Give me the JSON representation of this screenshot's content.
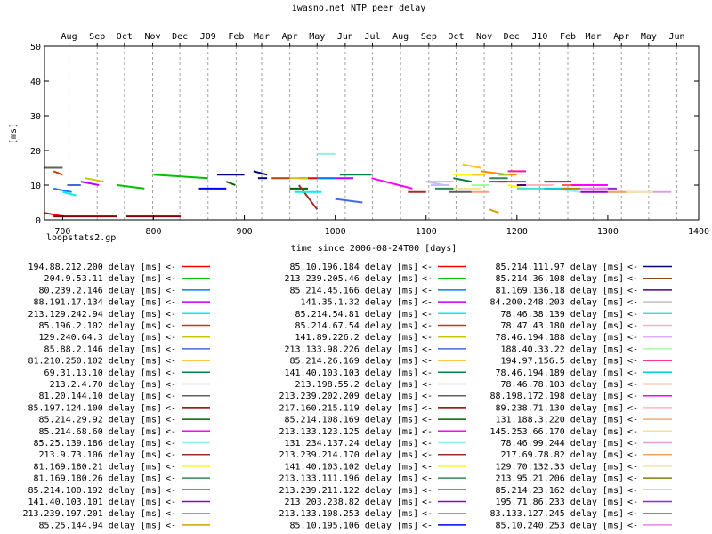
{
  "chart_data": {
    "type": "line",
    "title": "iwasno.net NTP peer delay",
    "xlabel": "time since 2006-08-24T00 [days]",
    "ylabel": "[ms]",
    "footer": "loopstats2.gp",
    "xlim": [
      680,
      1400
    ],
    "ylim": [
      0,
      50
    ],
    "grid": "vertical dashed at month starts",
    "legend_position": "below plot, 3 columns",
    "x_ticks": [
      {
        "value": 700,
        "label": "700"
      },
      {
        "value": 800,
        "label": "800"
      },
      {
        "value": 900,
        "label": "900"
      },
      {
        "value": 1000,
        "label": "1000"
      },
      {
        "value": 1100,
        "label": "1100"
      },
      {
        "value": 1200,
        "label": "1200"
      },
      {
        "value": 1300,
        "label": "1300"
      },
      {
        "value": 1400,
        "label": "1400"
      }
    ],
    "y_ticks": [
      {
        "value": 0,
        "label": "0"
      },
      {
        "value": 10,
        "label": "10"
      },
      {
        "value": 20,
        "label": "20"
      },
      {
        "value": 30,
        "label": "30"
      },
      {
        "value": 40,
        "label": "40"
      },
      {
        "value": 50,
        "label": "50"
      }
    ],
    "month_ticks": [
      {
        "value": 707,
        "label": "Aug"
      },
      {
        "value": 738,
        "label": "Sep"
      },
      {
        "value": 768,
        "label": "Oct"
      },
      {
        "value": 799,
        "label": "Nov"
      },
      {
        "value": 829,
        "label": "Dec"
      },
      {
        "value": 860,
        "label": "J09"
      },
      {
        "value": 891,
        "label": "Feb"
      },
      {
        "value": 919,
        "label": "Mar"
      },
      {
        "value": 950,
        "label": "Apr"
      },
      {
        "value": 980,
        "label": "May"
      },
      {
        "value": 1011,
        "label": "Jun"
      },
      {
        "value": 1041,
        "label": "Jul"
      },
      {
        "value": 1072,
        "label": "Aug"
      },
      {
        "value": 1103,
        "label": "Sep"
      },
      {
        "value": 1133,
        "label": "Oct"
      },
      {
        "value": 1164,
        "label": "Nov"
      },
      {
        "value": 1194,
        "label": "Dec"
      },
      {
        "value": 1225,
        "label": "J10"
      },
      {
        "value": 1256,
        "label": "Feb"
      },
      {
        "value": 1284,
        "label": "Mar"
      },
      {
        "value": 1315,
        "label": "Apr"
      },
      {
        "value": 1345,
        "label": "May"
      },
      {
        "value": 1376,
        "label": "Jun"
      }
    ],
    "series": [
      {
        "name": "194.88.212.200 delay [ms]",
        "color": "#ff0000",
        "x": [
          680,
          700
        ],
        "y": [
          2,
          1
        ]
      },
      {
        "name": "204.9.53.11 delay [ms]",
        "color": "#00c000",
        "x": [
          760,
          790
        ],
        "y": [
          10,
          9
        ]
      },
      {
        "name": "80.239.2.146 delay [ms]",
        "color": "#0080ff",
        "x": [
          690,
          710
        ],
        "y": [
          9,
          8
        ]
      },
      {
        "name": "88.191.17.134 delay [ms]",
        "color": "#c000ff",
        "x": [
          720,
          740
        ],
        "y": [
          11,
          10
        ]
      },
      {
        "name": "213.129.242.94 delay [ms]",
        "color": "#00eeee",
        "x": [
          700,
          715
        ],
        "y": [
          8,
          7
        ]
      },
      {
        "name": "85.196.2.102 delay [ms]",
        "color": "#c04000",
        "x": [
          690,
          700
        ],
        "y": [
          14,
          13
        ]
      },
      {
        "name": "129.240.64.3 delay [ms]",
        "color": "#c8c800",
        "x": [
          725,
          745
        ],
        "y": [
          12,
          11
        ]
      },
      {
        "name": "85.88.2.146 delay [ms]",
        "color": "#4169e1",
        "x": [
          705,
          720
        ],
        "y": [
          10,
          10
        ]
      },
      {
        "name": "81.210.250.102 delay [ms]",
        "color": "#ffc020",
        "x": [
          1140,
          1160
        ],
        "y": [
          16,
          15
        ]
      },
      {
        "name": "69.31.13.10 delay [ms]",
        "color": "#008040",
        "x": [
          1130,
          1150
        ],
        "y": [
          12,
          11
        ]
      },
      {
        "name": "213.2.4.70 delay [ms]",
        "color": "#c0c0ff",
        "x": [
          1100,
          1120
        ],
        "y": [
          11,
          10
        ]
      },
      {
        "name": "81.20.144.10 delay [ms]",
        "color": "#606060",
        "x": [
          680,
          700
        ],
        "y": [
          15,
          15
        ]
      },
      {
        "name": "85.197.124.100 delay [ms]",
        "color": "#8b0000",
        "x": [
          690,
          760
        ],
        "y": [
          1,
          1
        ]
      },
      {
        "name": "85.214.29.92 delay [ms]",
        "color": "#006400",
        "x": [
          950,
          970
        ],
        "y": [
          9,
          9
        ]
      },
      {
        "name": "85.214.68.60 delay [ms]",
        "color": "#ff00ff",
        "x": [
          1040,
          1085
        ],
        "y": [
          12,
          9
        ]
      },
      {
        "name": "85.25.139.186 delay [ms]",
        "color": "#90eeee",
        "x": [
          980,
          1000
        ],
        "y": [
          19,
          19
        ]
      },
      {
        "name": "213.9.73.106 delay [ms]",
        "color": "#a52a2a",
        "x": [
          960,
          980
        ],
        "y": [
          10,
          3
        ]
      },
      {
        "name": "81.169.180.21 delay [ms]",
        "color": "#ffff00",
        "x": [
          1190,
          1210
        ],
        "y": [
          10,
          9
        ]
      },
      {
        "name": "81.169.180.26 delay [ms]",
        "color": "#2e8b57",
        "x": [
          1170,
          1190
        ],
        "y": [
          12,
          12
        ]
      },
      {
        "name": "85.214.100.192 delay [ms]",
        "color": "#000080",
        "x": [
          910,
          925
        ],
        "y": [
          14,
          13
        ]
      },
      {
        "name": "141.40.103.101 delay [ms]",
        "color": "#9400d3",
        "x": [
          1230,
          1260
        ],
        "y": [
          11,
          11
        ]
      },
      {
        "name": "213.239.197.201 delay [ms]",
        "color": "#ff8c00",
        "x": [
          1160,
          1190
        ],
        "y": [
          14,
          13
        ]
      },
      {
        "name": "85.25.144.94 delay [ms]",
        "color": "#d3a000",
        "x": [
          1170,
          1180
        ],
        "y": [
          3,
          2
        ]
      },
      {
        "name": "85.10.196.184 delay [ms]",
        "color": "#ff0000",
        "x": [
          960,
          1000
        ],
        "y": [
          12,
          12
        ]
      },
      {
        "name": "213.239.205.46 delay [ms]",
        "color": "#00c000",
        "x": [
          800,
          860
        ],
        "y": [
          13,
          12
        ]
      },
      {
        "name": "85.214.45.166 delay [ms]",
        "color": "#0080ff",
        "x": [
          980,
          1000
        ],
        "y": [
          12,
          12
        ]
      },
      {
        "name": "141.35.1.32 delay [ms]",
        "color": "#c000ff",
        "x": [
          1000,
          1020
        ],
        "y": [
          12,
          12
        ]
      },
      {
        "name": "85.214.54.81 delay [ms]",
        "color": "#00eeee",
        "x": [
          955,
          985
        ],
        "y": [
          8,
          8
        ]
      },
      {
        "name": "85.214.67.54 delay [ms]",
        "color": "#c04000",
        "x": [
          930,
          950
        ],
        "y": [
          12,
          12
        ]
      },
      {
        "name": "141.89.226.2 delay [ms]",
        "color": "#c8c800",
        "x": [
          950,
          970
        ],
        "y": [
          12,
          12
        ]
      },
      {
        "name": "213.133.98.226 delay [ms]",
        "color": "#4169e1",
        "x": [
          1000,
          1030
        ],
        "y": [
          6,
          5
        ]
      },
      {
        "name": "85.214.26.169 delay [ms]",
        "color": "#ffc020",
        "x": [
          1145,
          1165
        ],
        "y": [
          13,
          13
        ]
      },
      {
        "name": "141.40.103.103 delay [ms]",
        "color": "#008040",
        "x": [
          1005,
          1040
        ],
        "y": [
          13,
          13
        ]
      },
      {
        "name": "213.198.55.2 delay [ms]",
        "color": "#c0c0ff",
        "x": [
          1105,
          1125
        ],
        "y": [
          10,
          10
        ]
      },
      {
        "name": "213.239.202.209 delay [ms]",
        "color": "#606060",
        "x": [
          1125,
          1150
        ],
        "y": [
          8,
          8
        ]
      },
      {
        "name": "217.160.215.119 delay [ms]",
        "color": "#8b0000",
        "x": [
          770,
          830
        ],
        "y": [
          1,
          1
        ]
      },
      {
        "name": "85.214.108.169 delay [ms]",
        "color": "#006400",
        "x": [
          880,
          890
        ],
        "y": [
          11,
          10
        ]
      },
      {
        "name": "213.133.123.125 delay [ms]",
        "color": "#ff00ff",
        "x": [
          1180,
          1210
        ],
        "y": [
          11,
          11
        ]
      },
      {
        "name": "131.234.137.24 delay [ms]",
        "color": "#90eeee",
        "x": [
          1240,
          1270
        ],
        "y": [
          9,
          8
        ]
      },
      {
        "name": "213.239.214.170 delay [ms]",
        "color": "#a52a2a",
        "x": [
          1080,
          1100
        ],
        "y": [
          8,
          8
        ]
      },
      {
        "name": "141.40.103.102 delay [ms]",
        "color": "#ffff00",
        "x": [
          1130,
          1150
        ],
        "y": [
          13,
          13
        ]
      },
      {
        "name": "213.133.111.196 delay [ms]",
        "color": "#2e8b57",
        "x": [
          1110,
          1130
        ],
        "y": [
          9,
          9
        ]
      },
      {
        "name": "213.239.211.122 delay [ms]",
        "color": "#000080",
        "x": [
          870,
          900
        ],
        "y": [
          13,
          13
        ]
      },
      {
        "name": "213.203.238.82 delay [ms]",
        "color": "#9400d3",
        "x": [
          1270,
          1300
        ],
        "y": [
          8,
          8
        ]
      },
      {
        "name": "213.133.108.253 delay [ms]",
        "color": "#ff8c00",
        "x": [
          1180,
          1200
        ],
        "y": [
          13,
          13
        ]
      },
      {
        "name": "85.10.195.106 delay [ms]",
        "color": "#0000ff",
        "x": [
          850,
          880
        ],
        "y": [
          9,
          9
        ]
      },
      {
        "name": "85.214.111.97 delay [ms]",
        "color": "#000080",
        "x": [
          915,
          925
        ],
        "y": [
          12,
          12
        ]
      },
      {
        "name": "85.214.36.108 delay [ms]",
        "color": "#8b4513",
        "x": [
          1170,
          1190
        ],
        "y": [
          11,
          11
        ]
      },
      {
        "name": "81.169.136.18 delay [ms]",
        "color": "#4b0082",
        "x": [
          1200,
          1230
        ],
        "y": [
          10,
          10
        ]
      },
      {
        "name": "84.200.248.203 delay [ms]",
        "color": "#c0c0c0",
        "x": [
          1100,
          1130
        ],
        "y": [
          11,
          11
        ]
      },
      {
        "name": "78.46.38.139 delay [ms]",
        "color": "#40e0d0",
        "x": [
          1200,
          1240
        ],
        "y": [
          9,
          9
        ]
      },
      {
        "name": "78.47.43.180 delay [ms]",
        "color": "#ffb0c8",
        "x": [
          1210,
          1240
        ],
        "y": [
          10,
          10
        ]
      },
      {
        "name": "78.46.194.188 delay [ms]",
        "color": "#e0b0ff",
        "x": [
          1260,
          1300
        ],
        "y": [
          9,
          9
        ]
      },
      {
        "name": "188.40.33.22 delay [ms]",
        "color": "#a0ffa0",
        "x": [
          1150,
          1170
        ],
        "y": [
          10,
          10
        ]
      },
      {
        "name": "194.97.156.5 delay [ms]",
        "color": "#ff1493",
        "x": [
          1190,
          1210
        ],
        "y": [
          14,
          14
        ]
      },
      {
        "name": "78.46.194.189 delay [ms]",
        "color": "#00ced1",
        "x": [
          1230,
          1260
        ],
        "y": [
          9,
          9
        ]
      },
      {
        "name": "78.46.78.103 delay [ms]",
        "color": "#ff6347",
        "x": [
          1250,
          1270
        ],
        "y": [
          10,
          10
        ]
      },
      {
        "name": "88.198.172.198 delay [ms]",
        "color": "#ff00ff",
        "x": [
          1260,
          1300
        ],
        "y": [
          10,
          10
        ]
      },
      {
        "name": "89.238.71.130 delay [ms]",
        "color": "#ffb6c1",
        "x": [
          1280,
          1300
        ],
        "y": [
          9,
          9
        ]
      },
      {
        "name": "131.188.3.220 delay [ms]",
        "color": "#ffa07a",
        "x": [
          1150,
          1170
        ],
        "y": [
          8,
          8
        ]
      },
      {
        "name": "145.253.66.170 delay [ms]",
        "color": "#f0e68c",
        "x": [
          1130,
          1160
        ],
        "y": [
          9,
          9
        ]
      },
      {
        "name": "78.46.99.244 delay [ms]",
        "color": "#dda0dd",
        "x": [
          1300,
          1370
        ],
        "y": [
          8,
          8
        ]
      },
      {
        "name": "217.69.78.82 delay [ms]",
        "color": "#f4a460",
        "x": [
          1300,
          1330
        ],
        "y": [
          8,
          8
        ]
      },
      {
        "name": "129.70.132.33 delay [ms]",
        "color": "#eee8aa",
        "x": [
          1320,
          1350
        ],
        "y": [
          8,
          8
        ]
      },
      {
        "name": "213.95.21.206 delay [ms]",
        "color": "#808000",
        "x": [
          1280,
          1300
        ],
        "y": [
          9,
          9
        ]
      },
      {
        "name": "85.214.23.162 delay [ms]",
        "color": "#9acd32",
        "x": [
          1180,
          1190
        ],
        "y": [
          13,
          13
        ]
      },
      {
        "name": "195.71.86.233 delay [ms]",
        "color": "#8a2be2",
        "x": [
          1290,
          1310
        ],
        "y": [
          9,
          9
        ]
      },
      {
        "name": "83.133.127.245 delay [ms]",
        "color": "#b8860b",
        "x": [
          1250,
          1270
        ],
        "y": [
          9,
          9
        ]
      },
      {
        "name": "85.10.240.253 delay [ms]",
        "color": "#ee82ee",
        "x": [
          1270,
          1300
        ],
        "y": [
          9,
          9
        ]
      }
    ]
  }
}
